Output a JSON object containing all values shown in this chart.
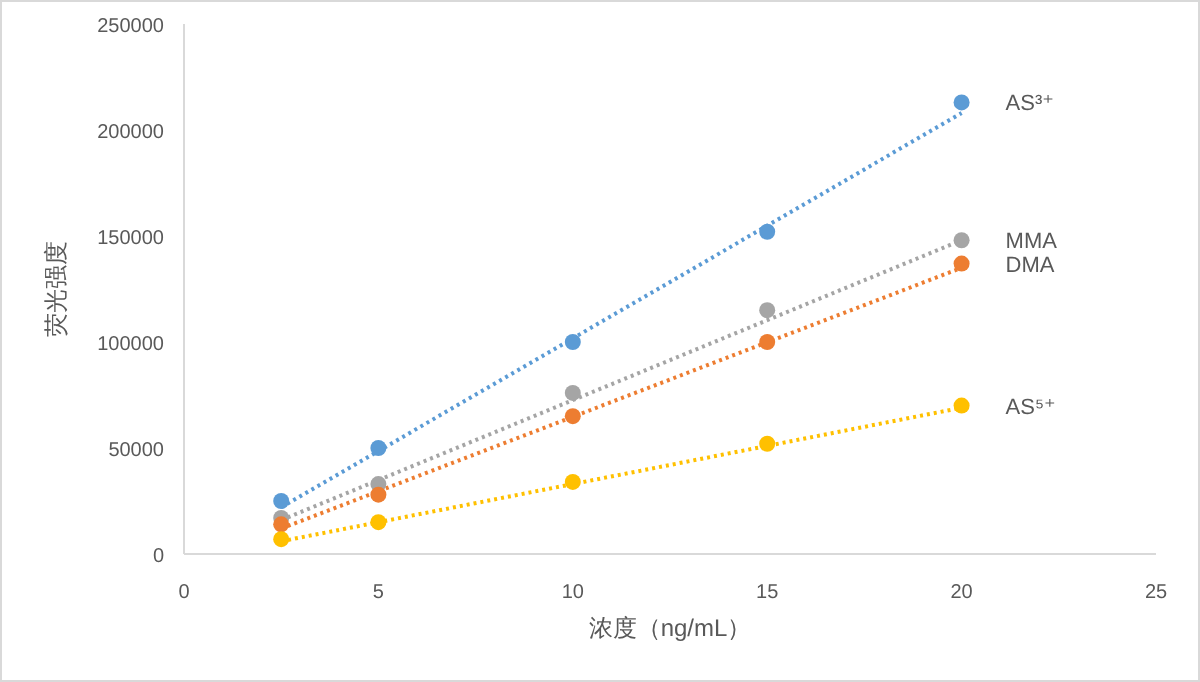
{
  "chart_data": {
    "type": "scatter",
    "xlabel": "浓度（ng/mL）",
    "ylabel": "荧光强度",
    "xlim": [
      0,
      25
    ],
    "xticks": [
      0,
      5,
      10,
      15,
      20,
      25
    ],
    "ylim": [
      0,
      250000
    ],
    "yticks": [
      0,
      50000,
      100000,
      150000,
      200000,
      250000
    ],
    "series": [
      {
        "name": "AS³⁺",
        "color": "#5b9bd5",
        "marker": "circle",
        "x": [
          2.5,
          5,
          10,
          15,
          20
        ],
        "values": [
          25000,
          50000,
          100000,
          152000,
          213000
        ]
      },
      {
        "name": "MMA",
        "color": "#a5a5a5",
        "marker": "circle",
        "x": [
          2.5,
          5,
          10,
          15,
          20
        ],
        "values": [
          17000,
          33000,
          76000,
          115000,
          148000
        ]
      },
      {
        "name": "DMA",
        "color": "#ed7d31",
        "marker": "circle",
        "x": [
          2.5,
          5,
          10,
          15,
          20
        ],
        "values": [
          14000,
          28000,
          65000,
          100000,
          137000
        ]
      },
      {
        "name": "AS⁵⁺",
        "color": "#ffc000",
        "marker": "circle",
        "x": [
          2.5,
          5,
          10,
          15,
          20
        ],
        "values": [
          7000,
          15000,
          34000,
          52000,
          70000
        ]
      },
      {
        "type": "line",
        "line_style": "dotted",
        "color": "#5b9bd5",
        "x": [
          2.5,
          20
        ],
        "values": [
          22000,
          208000
        ]
      },
      {
        "type": "line",
        "line_style": "dotted",
        "color": "#a5a5a5",
        "x": [
          2.5,
          20
        ],
        "values": [
          16000,
          148000
        ]
      },
      {
        "type": "line",
        "line_style": "dotted",
        "color": "#ed7d31",
        "x": [
          2.5,
          20
        ],
        "values": [
          12000,
          135000
        ]
      },
      {
        "type": "line",
        "line_style": "dotted",
        "color": "#ffc000",
        "x": [
          2.5,
          20
        ],
        "values": [
          6000,
          69000
        ]
      }
    ]
  }
}
